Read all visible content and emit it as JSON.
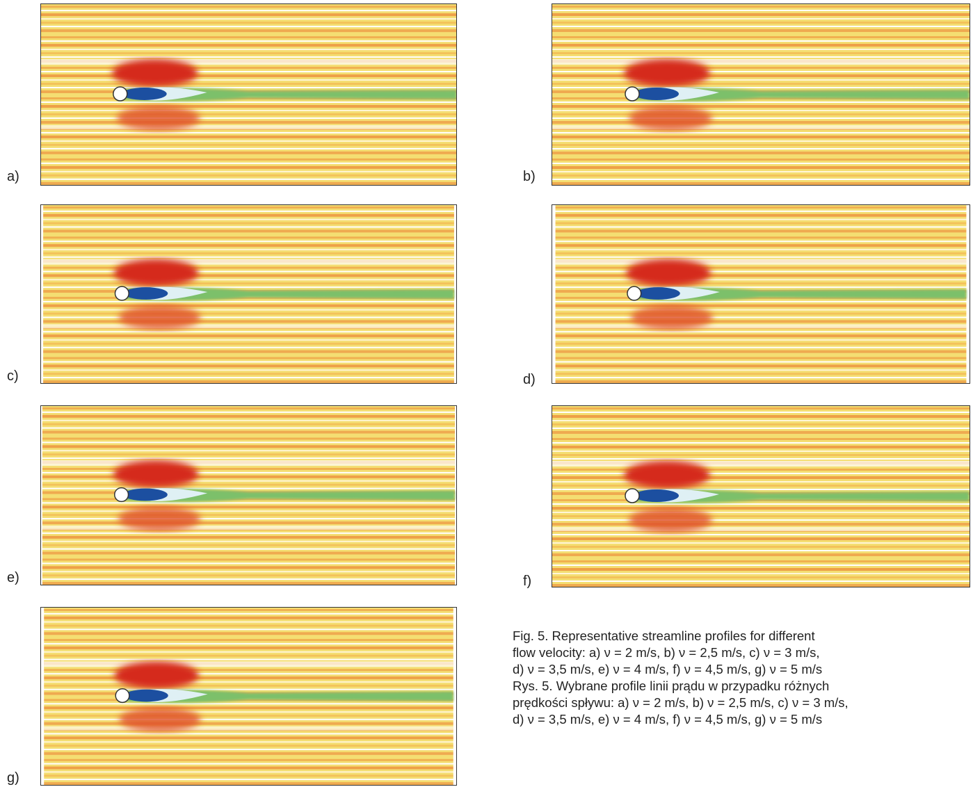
{
  "panels": [
    {
      "label": "a)"
    },
    {
      "label": "b)"
    },
    {
      "label": "c)"
    },
    {
      "label": "d)"
    },
    {
      "label": "e)"
    },
    {
      "label": "f)"
    },
    {
      "label": "g)"
    }
  ],
  "caption": {
    "lines": [
      "Fig. 5. Representative streamline profiles for different",
      "flow velocity: a) ν = 2 m/s, b) ν = 2,5 m/s, c) ν = 3 m/s,",
      "d) ν = 3,5 m/s, e) ν = 4 m/s, f) ν = 4,5 m/s, g) ν = 5 m/s",
      "Rys. 5. Wybrane profile linii prądu w przypadku różnych",
      "prędkości spływu: a) ν = 2 m/s, b) ν = 2,5 m/s, c) ν = 3 m/s,",
      "d) ν = 3,5 m/s, e) ν = 4 m/s, f) ν = 4,5 m/s, g) ν = 5 m/s"
    ]
  }
}
